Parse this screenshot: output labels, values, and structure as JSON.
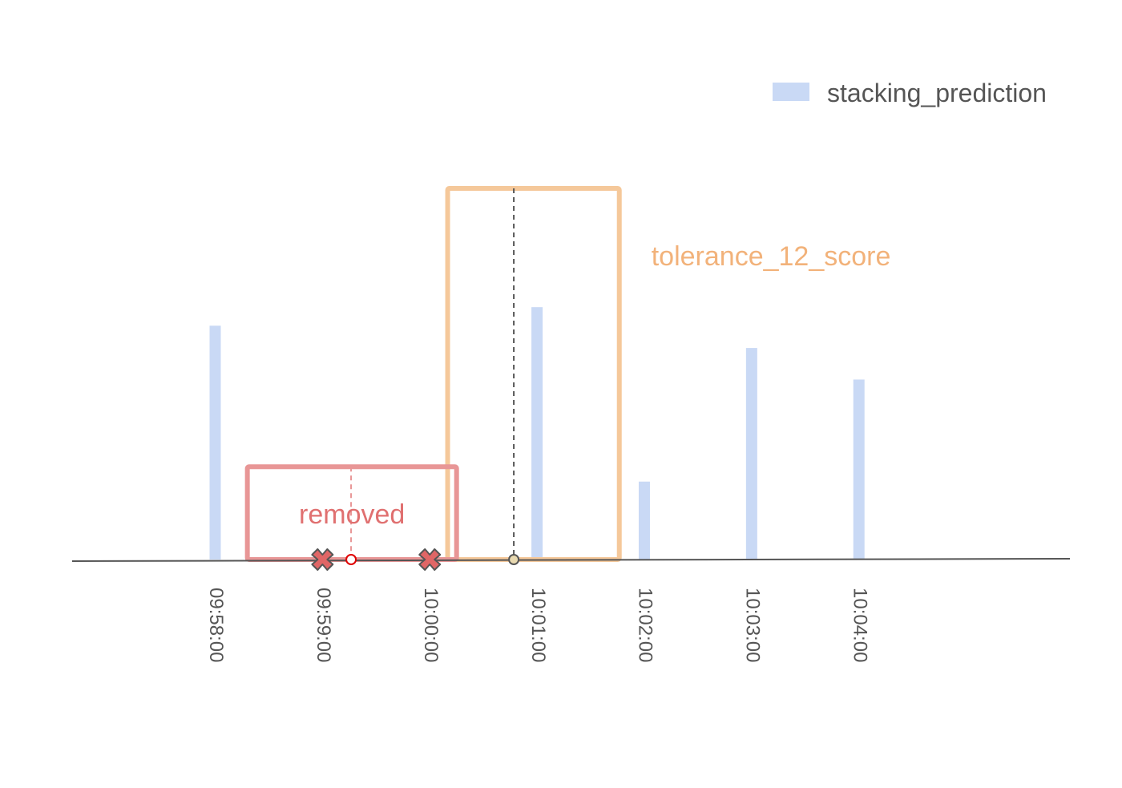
{
  "chart_data": {
    "type": "bar",
    "title": "",
    "xlabel": "",
    "ylabel": "",
    "x_axis": {
      "type": "time",
      "range": [
        "09:56:40",
        "10:05:58"
      ],
      "tick_labels": [
        "09:58:00",
        "09:59:00",
        "10:00:00",
        "10:01:00",
        "10:02:00",
        "10:03:00",
        "10:04:00"
      ]
    },
    "y_axis": {
      "range": [
        0,
        1
      ],
      "visible": false
    },
    "grid": false,
    "legend": {
      "position": "top-right"
    },
    "series": [
      {
        "name": "stacking_prediction",
        "color": "#c9d9f5",
        "x": [
          "09:58:00",
          "10:01:00",
          "10:02:00",
          "10:03:00",
          "10:04:00"
        ],
        "values": [
          0.63,
          0.68,
          0.21,
          0.57,
          0.485
        ]
      }
    ],
    "annotations": [
      {
        "label": "tolerance_12_score",
        "color": "#f5c89a",
        "label_color": "#f2b27a",
        "x_start": "10:00:10",
        "x_end": "10:01:46",
        "height": 1.0,
        "center": "10:00:47",
        "center_line_color": "#555555",
        "center_marker_color": "#e8d9b0"
      },
      {
        "label": "removed",
        "color": "#e89696",
        "label_color": "#e07070",
        "x_start": "09:58:18",
        "x_end": "10:00:15",
        "height": 0.25,
        "center": "09:59:16",
        "center_line_color": "#e89696",
        "center_marker_color": "#e00000"
      }
    ],
    "removed_points": {
      "x": [
        "09:59:00",
        "10:00:00"
      ],
      "color": "#e06666",
      "edge_color": "#555555"
    }
  }
}
